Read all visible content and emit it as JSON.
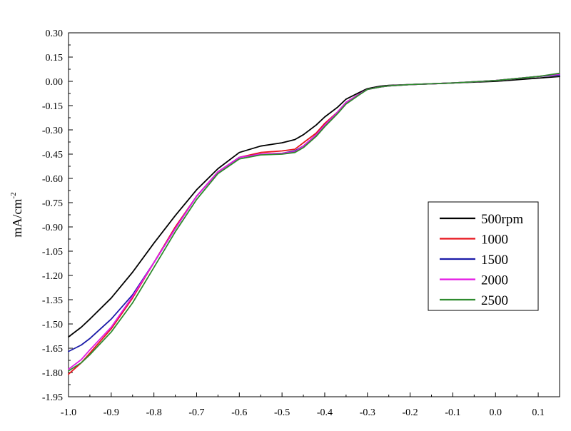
{
  "chart_data": {
    "type": "line",
    "title": "",
    "xlabel": "",
    "ylabel": "mA/cm",
    "ylabel_superscript": "-2",
    "xlim": [
      -1.0,
      0.15
    ],
    "ylim": [
      -1.95,
      0.3
    ],
    "x_ticks": [
      -1.0,
      -0.9,
      -0.8,
      -0.7,
      -0.6,
      -0.5,
      -0.4,
      -0.3,
      -0.2,
      -0.1,
      0.0,
      0.1
    ],
    "x_tick_labels": [
      "-1.0",
      "-0.9",
      "-0.8",
      "-0.7",
      "-0.6",
      "-0.5",
      "-0.4",
      "-0.3",
      "-0.2",
      "-0.1",
      "0.0",
      "0.1"
    ],
    "y_ticks": [
      0.3,
      0.15,
      0.0,
      -0.15,
      -0.3,
      -0.45,
      -0.6,
      -0.75,
      -0.9,
      -1.05,
      -1.2,
      -1.35,
      -1.5,
      -1.65,
      -1.8,
      -1.95
    ],
    "y_tick_labels": [
      "0.30",
      "0.15",
      "0.00",
      "-0.15",
      "-0.30",
      "-0.45",
      "-0.60",
      "-0.75",
      "-0.90",
      "-1.05",
      "-1.20",
      "-1.35",
      "-1.50",
      "-1.65",
      "-1.80",
      "-1.95"
    ],
    "legend_position": "right-middle",
    "grid": false,
    "series": [
      {
        "name": "500rpm",
        "color": "#000000",
        "x": [
          -1.0,
          -0.97,
          -0.95,
          -0.9,
          -0.85,
          -0.8,
          -0.75,
          -0.7,
          -0.65,
          -0.6,
          -0.55,
          -0.5,
          -0.47,
          -0.45,
          -0.42,
          -0.4,
          -0.37,
          -0.35,
          -0.32,
          -0.3,
          -0.27,
          -0.25,
          -0.2,
          -0.1,
          0.0,
          0.1,
          0.15
        ],
        "y": [
          -1.58,
          -1.52,
          -1.47,
          -1.34,
          -1.18,
          -1.0,
          -0.83,
          -0.67,
          -0.54,
          -0.44,
          -0.4,
          -0.38,
          -0.36,
          -0.33,
          -0.27,
          -0.22,
          -0.16,
          -0.11,
          -0.07,
          -0.045,
          -0.03,
          -0.025,
          -0.02,
          -0.01,
          0.0,
          0.02,
          0.03
        ]
      },
      {
        "name": "1000",
        "color": "#e8141c",
        "x": [
          -1.0,
          -0.97,
          -0.95,
          -0.9,
          -0.85,
          -0.8,
          -0.75,
          -0.7,
          -0.65,
          -0.6,
          -0.55,
          -0.5,
          -0.47,
          -0.45,
          -0.42,
          -0.4,
          -0.37,
          -0.35,
          -0.32,
          -0.3,
          -0.27,
          -0.25,
          -0.2,
          -0.1,
          0.0,
          0.1,
          0.15
        ],
        "y": [
          -1.81,
          -1.74,
          -1.68,
          -1.53,
          -1.34,
          -1.12,
          -0.9,
          -0.71,
          -0.56,
          -0.47,
          -0.44,
          -0.43,
          -0.42,
          -0.38,
          -0.32,
          -0.26,
          -0.19,
          -0.13,
          -0.08,
          -0.05,
          -0.035,
          -0.028,
          -0.02,
          -0.01,
          0.005,
          0.03,
          0.045
        ]
      },
      {
        "name": "1500",
        "color": "#1a1aa8",
        "x": [
          -1.0,
          -0.97,
          -0.95,
          -0.9,
          -0.85,
          -0.8,
          -0.75,
          -0.7,
          -0.65,
          -0.6,
          -0.55,
          -0.5,
          -0.47,
          -0.45,
          -0.42,
          -0.4,
          -0.37,
          -0.35,
          -0.32,
          -0.3,
          -0.27,
          -0.25,
          -0.2,
          -0.1,
          0.0,
          0.1,
          0.15
        ],
        "y": [
          -1.67,
          -1.63,
          -1.59,
          -1.47,
          -1.32,
          -1.12,
          -0.91,
          -0.71,
          -0.56,
          -0.47,
          -0.45,
          -0.445,
          -0.43,
          -0.4,
          -0.33,
          -0.27,
          -0.19,
          -0.13,
          -0.08,
          -0.05,
          -0.035,
          -0.028,
          -0.02,
          -0.01,
          0.005,
          0.03,
          0.04
        ]
      },
      {
        "name": "2000",
        "color": "#e41ae4",
        "x": [
          -1.0,
          -0.97,
          -0.95,
          -0.9,
          -0.85,
          -0.8,
          -0.75,
          -0.7,
          -0.65,
          -0.6,
          -0.55,
          -0.5,
          -0.47,
          -0.45,
          -0.42,
          -0.4,
          -0.37,
          -0.35,
          -0.32,
          -0.3,
          -0.27,
          -0.25,
          -0.2,
          -0.1,
          0.0,
          0.1,
          0.15
        ],
        "y": [
          -1.78,
          -1.72,
          -1.66,
          -1.52,
          -1.33,
          -1.12,
          -0.91,
          -0.71,
          -0.56,
          -0.47,
          -0.45,
          -0.445,
          -0.435,
          -0.4,
          -0.33,
          -0.27,
          -0.19,
          -0.13,
          -0.08,
          -0.05,
          -0.035,
          -0.028,
          -0.02,
          -0.01,
          0.005,
          0.03,
          0.045
        ]
      },
      {
        "name": "2500",
        "color": "#2e8b2e",
        "x": [
          -1.0,
          -0.97,
          -0.95,
          -0.9,
          -0.85,
          -0.8,
          -0.75,
          -0.7,
          -0.65,
          -0.6,
          -0.55,
          -0.5,
          -0.47,
          -0.45,
          -0.42,
          -0.4,
          -0.37,
          -0.35,
          -0.32,
          -0.3,
          -0.27,
          -0.25,
          -0.2,
          -0.1,
          0.0,
          0.1,
          0.15
        ],
        "y": [
          -1.79,
          -1.74,
          -1.69,
          -1.55,
          -1.37,
          -1.15,
          -0.93,
          -0.73,
          -0.57,
          -0.48,
          -0.455,
          -0.45,
          -0.44,
          -0.41,
          -0.34,
          -0.28,
          -0.2,
          -0.14,
          -0.085,
          -0.05,
          -0.035,
          -0.028,
          -0.02,
          -0.01,
          0.005,
          0.03,
          0.05
        ]
      }
    ]
  }
}
